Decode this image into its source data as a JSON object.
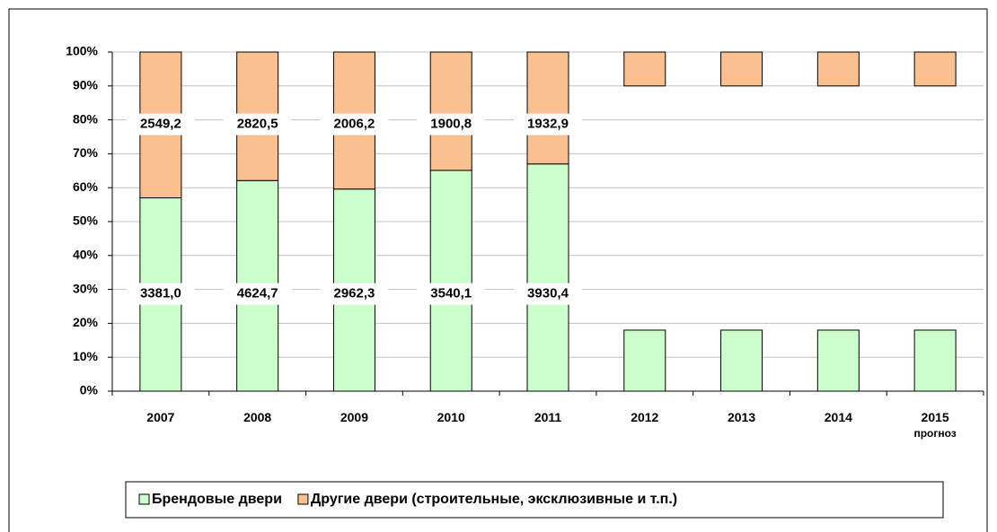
{
  "chart_data": {
    "type": "stacked_bar_percent",
    "categories": [
      "2007",
      "2008",
      "2009",
      "2010",
      "2011",
      "2012",
      "2013",
      "2014",
      "2015 прогноз"
    ],
    "series": [
      {
        "name": "Брендовые двери",
        "color": "#ccffcc",
        "values": [
          57.0,
          62.1,
          59.6,
          65.1,
          67.0,
          18,
          18,
          18,
          18
        ],
        "data_labels": [
          "3381,0",
          "4624,7",
          "2962,3",
          "3540,1",
          "3930,4",
          null,
          null,
          null,
          null
        ]
      },
      {
        "name": "Другие двери (строительные,  эксклюзивные и т.п.)",
        "color": "#fac090",
        "values": [
          43.0,
          37.9,
          40.4,
          34.9,
          33.0,
          10,
          10,
          10,
          10
        ],
        "data_labels": [
          "2549,2",
          "2820,5",
          "2006,2",
          "1900,8",
          "1932,9",
          null,
          null,
          null,
          null
        ]
      }
    ],
    "ylim": [
      0,
      100
    ],
    "yticks": [
      {
        "value": 0,
        "label": "0%"
      },
      {
        "value": 10,
        "label": "10%"
      },
      {
        "value": 20,
        "label": "20%"
      },
      {
        "value": 30,
        "label": "30%"
      },
      {
        "value": 40,
        "label": "40%"
      },
      {
        "value": 50,
        "label": "50%"
      },
      {
        "value": 60,
        "label": "60%"
      },
      {
        "value": 70,
        "label": "70%"
      },
      {
        "value": 80,
        "label": "80%"
      },
      {
        "value": 90,
        "label": "90%"
      },
      {
        "value": 100,
        "label": "100%"
      }
    ],
    "grid": true,
    "legend": "bottom"
  }
}
